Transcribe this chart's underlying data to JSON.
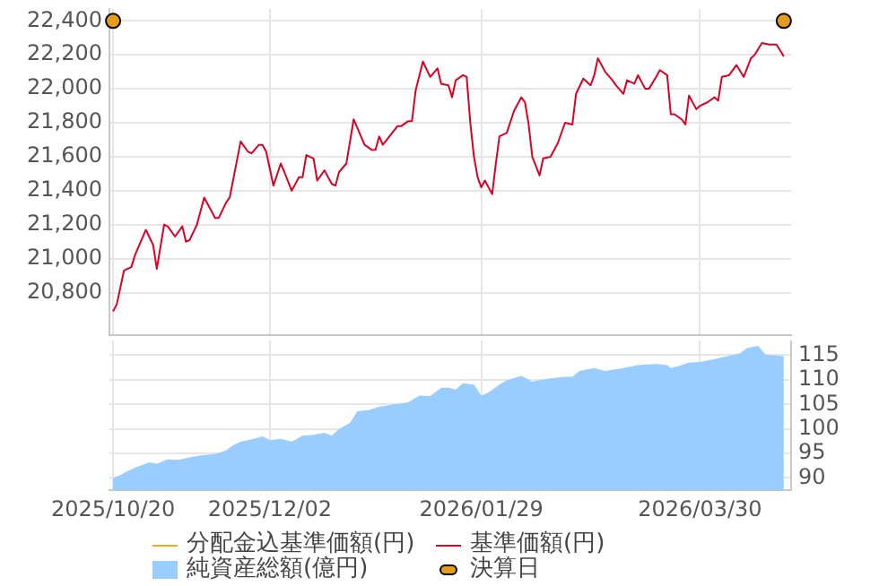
{
  "chart_data": [
    {
      "type": "line",
      "x": [
        "2025-10-20",
        "2025-10-21",
        "2025-10-22",
        "2025-10-23",
        "2025-10-25",
        "2025-10-26",
        "2025-10-29",
        "2025-10-31",
        "2025-11-01",
        "2025-11-03",
        "2025-11-04",
        "2025-11-06",
        "2025-11-08",
        "2025-11-09",
        "2025-11-10",
        "2025-11-12",
        "2025-11-14",
        "2025-11-17",
        "2025-11-18",
        "2025-11-20",
        "2025-11-21",
        "2025-11-24",
        "2025-11-26",
        "2025-11-27",
        "2025-11-29",
        "2025-11-30",
        "2025-12-01",
        "2025-12-03",
        "2025-12-05",
        "2025-12-06",
        "2025-12-08",
        "2025-12-10",
        "2025-12-11",
        "2025-12-12",
        "2025-12-14",
        "2025-12-15",
        "2025-12-17",
        "2025-12-19",
        "2025-12-20",
        "2025-12-21",
        "2025-12-23",
        "2025-12-25",
        "2025-12-26",
        "2025-12-28",
        "2025-12-30",
        "2025-12-31",
        "2026-01-01",
        "2026-01-02",
        "2026-01-06",
        "2026-01-07",
        "2026-01-09",
        "2026-01-10",
        "2026-01-11",
        "2026-01-13",
        "2026-01-15",
        "2026-01-17",
        "2026-01-18",
        "2026-01-20",
        "2026-01-21",
        "2026-01-22",
        "2026-01-24",
        "2026-01-25",
        "2026-01-26",
        "2026-01-27",
        "2026-01-28",
        "2026-01-29",
        "2026-01-30",
        "2026-02-01",
        "2026-02-02",
        "2026-02-03",
        "2026-02-05",
        "2026-02-07",
        "2026-02-09",
        "2026-02-10",
        "2026-02-11",
        "2026-02-12",
        "2026-02-14",
        "2026-02-15",
        "2026-02-17",
        "2026-02-19",
        "2026-02-21",
        "2026-02-23",
        "2026-02-24",
        "2026-02-26",
        "2026-02-28",
        "2026-03-01",
        "2026-03-02",
        "2026-03-04",
        "2026-03-06",
        "2026-03-07",
        "2026-03-09",
        "2026-03-10",
        "2026-03-12",
        "2026-03-13",
        "2026-03-15",
        "2026-03-16",
        "2026-03-18",
        "2026-03-19",
        "2026-03-21",
        "2026-03-22",
        "2026-03-23",
        "2026-03-25",
        "2026-03-26",
        "2026-03-27",
        "2026-03-29",
        "2026-03-30",
        "2026-04-01",
        "2026-04-03",
        "2026-04-04",
        "2026-04-05",
        "2026-04-07",
        "2026-04-09",
        "2026-04-11",
        "2026-04-13",
        "2026-04-14",
        "2026-04-16",
        "2026-04-18",
        "2026-04-20",
        "2026-04-22"
      ],
      "series": [
        {
          "name": "分配金込基準価額(円)",
          "color": "#ffaa00",
          "values": [
            null,
            null,
            null,
            null,
            null,
            null,
            null,
            null,
            null,
            null,
            null,
            null,
            null,
            null,
            null,
            null,
            null,
            null,
            null,
            null,
            null,
            null,
            null,
            null,
            null,
            null,
            null,
            null,
            null,
            null,
            null,
            null,
            null,
            null,
            null,
            null,
            null,
            null,
            null,
            null,
            null,
            null,
            null,
            null,
            null,
            null,
            null,
            null,
            null,
            null,
            null,
            null,
            null,
            null,
            null,
            null,
            null,
            null,
            null,
            null,
            null,
            null,
            null,
            null,
            null,
            null,
            null,
            null,
            null,
            null,
            null,
            null,
            null,
            null,
            null,
            null,
            null,
            null,
            null,
            null,
            null,
            null,
            null,
            null,
            null,
            null,
            null,
            null,
            null,
            null,
            null,
            null,
            null,
            null,
            null,
            null,
            null,
            null,
            null,
            null,
            null,
            null,
            null,
            null,
            null,
            null,
            null,
            null,
            null,
            null,
            null,
            null,
            null,
            null,
            null,
            null,
            null,
            null,
            null
          ]
        },
        {
          "name": "基準価額(円)",
          "color": "#dd0022",
          "values": [
            20690,
            20730,
            20830,
            20930,
            20950,
            21020,
            21170,
            21080,
            20940,
            21200,
            21190,
            21130,
            21190,
            21100,
            21110,
            21200,
            21360,
            21240,
            21240,
            21330,
            21360,
            21690,
            21630,
            21620,
            21670,
            21670,
            21630,
            21430,
            21560,
            21510,
            21400,
            21480,
            21480,
            21610,
            21590,
            21460,
            21520,
            21440,
            21430,
            21510,
            21560,
            21820,
            21770,
            21670,
            21640,
            21640,
            21720,
            21670,
            21780,
            21780,
            21810,
            21810,
            21990,
            22160,
            22070,
            22120,
            22030,
            22020,
            21950,
            22050,
            22080,
            22070,
            21800,
            21600,
            21480,
            21420,
            21460,
            21380,
            21560,
            21720,
            21740,
            21870,
            21950,
            21920,
            21790,
            21600,
            21490,
            21590,
            21600,
            21680,
            21800,
            21790,
            21970,
            22060,
            22020,
            22080,
            22180,
            22100,
            22050,
            22020,
            21970,
            22050,
            22030,
            22080,
            22000,
            22000,
            22070,
            22110,
            22080,
            21850,
            21850,
            21820,
            21790,
            21960,
            21880,
            21900,
            21920,
            21950,
            21930,
            22070,
            22080,
            22140,
            22070,
            22180,
            22200,
            22270,
            22260,
            22260,
            22190
          ]
        },
        {
          "name": "決算日",
          "type": "scatter",
          "marker": "circle",
          "color": "#e39c1c",
          "x": [
            "2025-10-20",
            "2026-04-22"
          ],
          "values": [
            22400,
            22400
          ]
        }
      ],
      "xlim": [
        "2025-10-19",
        "2026-04-24"
      ],
      "xticks": [
        {
          "value": "2025-10-20",
          "label": null
        },
        {
          "value": "2025-12-02",
          "label": null
        },
        {
          "value": "2026-01-29",
          "label": null
        },
        {
          "value": "2026-03-30",
          "label": null
        }
      ],
      "ylim": [
        20550,
        22470
      ],
      "yticks": [
        {
          "value": 20800,
          "label": "20,800"
        },
        {
          "value": 21000,
          "label": "21,000"
        },
        {
          "value": 21200,
          "label": "21,200"
        },
        {
          "value": 21400,
          "label": "21,400"
        },
        {
          "value": 21600,
          "label": "21,600"
        },
        {
          "value": 21800,
          "label": "21,800"
        },
        {
          "value": 22000,
          "label": "22,000"
        },
        {
          "value": 22200,
          "label": "22,200"
        },
        {
          "value": 22400,
          "label": "22,400"
        }
      ],
      "tick_labels": "y",
      "grid": true,
      "legend": "bottom"
    },
    {
      "type": "area",
      "x": [
        "2025-10-20",
        "2025-10-22",
        "2025-10-24",
        "2025-10-26",
        "2025-10-30",
        "2025-11-01",
        "2025-11-04",
        "2025-11-07",
        "2025-11-10",
        "2025-11-13",
        "2025-11-17",
        "2025-11-20",
        "2025-11-22",
        "2025-11-24",
        "2025-11-27",
        "2025-11-30",
        "2025-12-02",
        "2025-12-05",
        "2025-12-08",
        "2025-12-11",
        "2025-12-14",
        "2025-12-17",
        "2025-12-19",
        "2025-12-21",
        "2025-12-24",
        "2025-12-26",
        "2025-12-29",
        "2026-01-01",
        "2026-01-05",
        "2026-01-09",
        "2026-01-12",
        "2026-01-15",
        "2026-01-18",
        "2026-01-20",
        "2026-01-22",
        "2026-01-24",
        "2026-01-27",
        "2026-01-29",
        "2026-01-31",
        "2026-02-03",
        "2026-02-05",
        "2026-02-09",
        "2026-02-12",
        "2026-02-16",
        "2026-02-21",
        "2026-02-23",
        "2026-02-25",
        "2026-03-01",
        "2026-03-04",
        "2026-03-09",
        "2026-03-13",
        "2026-03-18",
        "2026-03-21",
        "2026-03-22",
        "2026-03-25",
        "2026-03-27",
        "2026-03-30",
        "2026-04-03",
        "2026-04-06",
        "2026-04-10",
        "2026-04-12",
        "2026-04-15",
        "2026-04-17",
        "2026-04-22"
      ],
      "series": [
        {
          "name": "純資産総額(億円)",
          "color": "#99ccff",
          "axis": "y2",
          "values": [
            90.0,
            90.6,
            91.4,
            92.1,
            93.2,
            92.9,
            93.8,
            93.7,
            94.2,
            94.6,
            94.9,
            95.6,
            96.7,
            97.4,
            97.9,
            98.5,
            97.7,
            98.0,
            97.4,
            98.6,
            98.8,
            99.2,
            98.6,
            100.0,
            101.2,
            103.6,
            103.8,
            104.5,
            105.0,
            105.4,
            106.8,
            106.7,
            108.4,
            108.4,
            108.0,
            109.3,
            109.0,
            106.8,
            107.4,
            109.0,
            109.9,
            110.8,
            109.6,
            110.2,
            110.6,
            110.6,
            111.8,
            112.4,
            111.8,
            112.4,
            113.0,
            113.2,
            113.0,
            112.4,
            113.0,
            113.5,
            113.6,
            114.2,
            114.7,
            115.4,
            116.5,
            116.9,
            115.1,
            114.8
          ]
        }
      ],
      "xlim": [
        "2025-10-19",
        "2026-04-24"
      ],
      "xticks": [
        {
          "value": "2025-10-20",
          "label": "2025/10/20"
        },
        {
          "value": "2025-12-02",
          "label": "2025/12/02"
        },
        {
          "value": "2026-01-29",
          "label": "2026/01/29"
        },
        {
          "value": "2026-03-30",
          "label": "2026/03/30"
        }
      ],
      "y2lim": [
        87.5,
        118
      ],
      "y2ticks": [
        90,
        95,
        100,
        105,
        110,
        115
      ],
      "grid": true,
      "legend": "bottom"
    }
  ]
}
